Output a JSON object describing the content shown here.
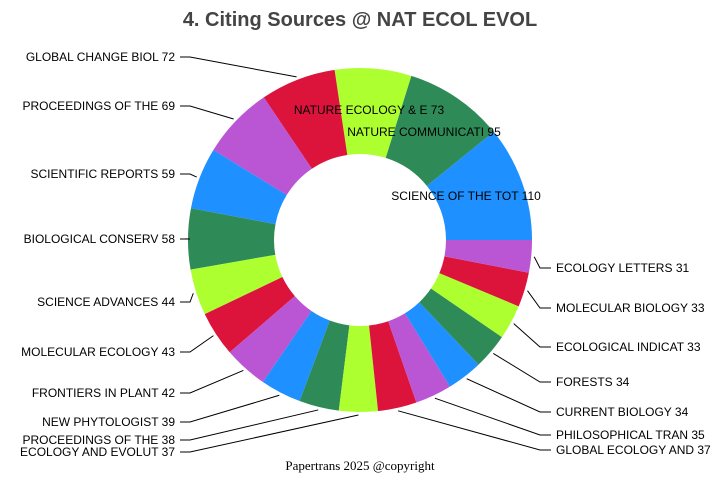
{
  "chart_data": {
    "type": "pie",
    "donut": true,
    "title": "4. Citing Sources @ NAT ECOL EVOL",
    "footer": "Papertrans 2025 @copyright",
    "direction": "counterclockwise from 3 o'clock",
    "colors": [
      "#1E90FF",
      "#2E8B57",
      "#ADFF2F",
      "#DC143C",
      "#BA55D3"
    ],
    "slices": [
      {
        "label": "SCIENCE OF THE TOT",
        "value": 110
      },
      {
        "label": "NATURE COMMUNICATI",
        "value": 95
      },
      {
        "label": "NATURE ECOLOGY & E",
        "value": 73
      },
      {
        "label": "GLOBAL CHANGE BIOL",
        "value": 72
      },
      {
        "label": "PROCEEDINGS OF THE",
        "value": 69
      },
      {
        "label": "SCIENTIFIC REPORTS",
        "value": 59
      },
      {
        "label": "BIOLOGICAL CONSERV",
        "value": 58
      },
      {
        "label": "SCIENCE ADVANCES",
        "value": 44
      },
      {
        "label": "MOLECULAR ECOLOGY",
        "value": 43
      },
      {
        "label": "FRONTIERS IN PLANT",
        "value": 42
      },
      {
        "label": "NEW PHYTOLOGIST",
        "value": 39
      },
      {
        "label": "PROCEEDINGS OF THE",
        "value": 38
      },
      {
        "label": "ECOLOGY AND EVOLUT",
        "value": 37
      },
      {
        "label": "GLOBAL ECOLOGY AND",
        "value": 37
      },
      {
        "label": "PHILOSOPHICAL TRAN",
        "value": 35
      },
      {
        "label": "CURRENT BIOLOGY",
        "value": 34
      },
      {
        "label": "FORESTS",
        "value": 34
      },
      {
        "label": "ECOLOGICAL INDICAT",
        "value": 33
      },
      {
        "label": "MOLECULAR BIOLOGY ",
        "value": 33
      },
      {
        "label": "ECOLOGY LETTERS",
        "value": 31
      }
    ]
  }
}
